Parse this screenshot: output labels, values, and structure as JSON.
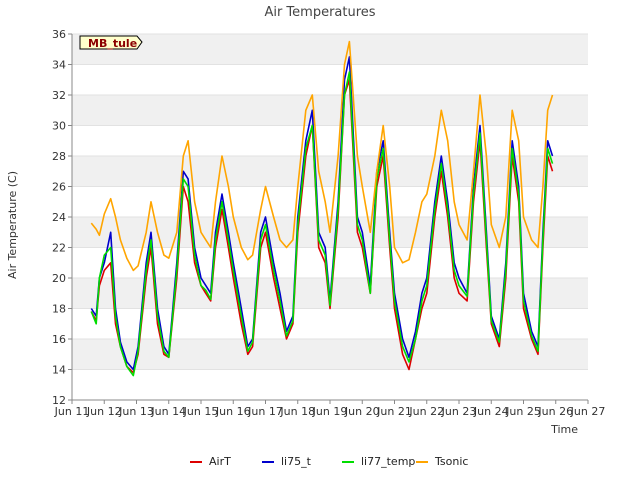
{
  "chart_data": {
    "type": "line",
    "title": "Air Temperatures",
    "xlabel": "Time",
    "ylabel": "Air Temperature (C)",
    "station_label": "MB_tule",
    "xlim": [
      11,
      27
    ],
    "ylim": [
      12,
      36
    ],
    "x_ticks": [
      11,
      12,
      13,
      14,
      15,
      16,
      17,
      18,
      19,
      20,
      21,
      22,
      23,
      24,
      25,
      26,
      27
    ],
    "x_tick_labels": [
      "Jun 11",
      "Jun 12",
      "Jun 13",
      "Jun 14",
      "Jun 15",
      "Jun 16",
      "Jun 17",
      "Jun 18",
      "Jun 19",
      "Jun 20",
      "Jun 21",
      "Jun 22",
      "Jun 23",
      "Jun 24",
      "Jun 25",
      "Jun 26",
      "Jun 27"
    ],
    "y_ticks": [
      12,
      14,
      16,
      18,
      20,
      22,
      24,
      26,
      28,
      30,
      32,
      34,
      36
    ],
    "grid": "horizontal bands",
    "legend_position": "bottom",
    "series": [
      {
        "name": "AirT",
        "color": "#dd0000",
        "x": [
          11.6,
          11.75,
          11.85,
          12.0,
          12.2,
          12.35,
          12.5,
          12.7,
          12.9,
          13.05,
          13.3,
          13.45,
          13.65,
          13.85,
          14.0,
          14.25,
          14.45,
          14.6,
          14.8,
          15.0,
          15.15,
          15.3,
          15.45,
          15.65,
          15.85,
          16.0,
          16.25,
          16.45,
          16.6,
          16.85,
          17.0,
          17.25,
          17.45,
          17.65,
          17.85,
          18.0,
          18.25,
          18.45,
          18.65,
          18.85,
          19.0,
          19.25,
          19.45,
          19.6,
          19.85,
          20.0,
          20.25,
          20.45,
          20.65,
          20.85,
          21.0,
          21.25,
          21.45,
          21.65,
          21.85,
          22.0,
          22.25,
          22.45,
          22.65,
          22.85,
          23.0,
          23.25,
          23.45,
          23.65,
          23.85,
          24.0,
          24.25,
          24.45,
          24.65,
          24.85,
          25.0,
          25.25,
          25.45,
          25.6,
          25.75,
          25.9
        ],
        "y": [
          17.8,
          17.2,
          19.5,
          20.5,
          21,
          17,
          15.5,
          14.2,
          13.8,
          15,
          20,
          22,
          17,
          15,
          14.8,
          20,
          26,
          25,
          21,
          19.5,
          19,
          18.5,
          22,
          24.5,
          22,
          20,
          17,
          15,
          15.5,
          22,
          23,
          20,
          18,
          16,
          17,
          23,
          28,
          30,
          22,
          21,
          18,
          24,
          32,
          33,
          23,
          22,
          19,
          26,
          28,
          22,
          18,
          15,
          14,
          16,
          18,
          19,
          24,
          27,
          24,
          20,
          19,
          18.5,
          25,
          29,
          22,
          17,
          15.5,
          20,
          28,
          25,
          18,
          16,
          15,
          22,
          28,
          27
        ]
      },
      {
        "name": "li75_t",
        "color": "#0000cc",
        "x": [
          11.6,
          11.75,
          11.85,
          12.0,
          12.2,
          12.35,
          12.5,
          12.7,
          12.9,
          13.05,
          13.3,
          13.45,
          13.65,
          13.85,
          14.0,
          14.25,
          14.45,
          14.6,
          14.8,
          15.0,
          15.15,
          15.3,
          15.45,
          15.65,
          15.85,
          16.0,
          16.25,
          16.45,
          16.6,
          16.85,
          17.0,
          17.25,
          17.45,
          17.65,
          17.85,
          18.0,
          18.25,
          18.45,
          18.65,
          18.85,
          19.0,
          19.25,
          19.45,
          19.6,
          19.85,
          20.0,
          20.25,
          20.45,
          20.65,
          20.85,
          21.0,
          21.25,
          21.45,
          21.65,
          21.85,
          22.0,
          22.25,
          22.45,
          22.65,
          22.85,
          23.0,
          23.25,
          23.45,
          23.65,
          23.85,
          24.0,
          24.25,
          24.45,
          24.65,
          24.85,
          25.0,
          25.25,
          25.45,
          25.6,
          25.75,
          25.9
        ],
        "y": [
          18,
          17.5,
          20,
          21,
          23,
          18,
          15.8,
          14.5,
          14,
          15.5,
          21,
          23,
          18,
          15.5,
          15,
          21,
          27,
          26.5,
          22,
          20,
          19.5,
          19,
          23,
          25.5,
          23,
          21,
          18,
          15.5,
          16,
          23,
          24,
          21,
          19,
          16.5,
          17.5,
          24,
          29,
          31,
          23,
          22,
          18.5,
          25,
          33,
          34.5,
          24,
          23,
          19.5,
          27,
          29,
          23,
          19,
          16,
          14.8,
          16.5,
          19,
          20,
          25,
          28,
          25,
          21,
          20,
          19,
          26,
          30,
          23,
          17.5,
          16,
          21,
          29,
          26,
          19,
          16.5,
          15.5,
          23,
          29,
          28
        ]
      },
      {
        "name": "li77_temp",
        "color": "#00dd00",
        "x": [
          11.6,
          11.75,
          11.85,
          12.0,
          12.2,
          12.35,
          12.5,
          12.7,
          12.9,
          13.05,
          13.3,
          13.45,
          13.65,
          13.85,
          14.0,
          14.25,
          14.45,
          14.6,
          14.8,
          15.0,
          15.15,
          15.3,
          15.45,
          15.65,
          15.85,
          16.0,
          16.25,
          16.45,
          16.6,
          16.85,
          17.0,
          17.25,
          17.45,
          17.65,
          17.85,
          18.0,
          18.25,
          18.45,
          18.65,
          18.85,
          19.0,
          19.25,
          19.45,
          19.6,
          19.85,
          20.0,
          20.25,
          20.45,
          20.65,
          20.85,
          21.0,
          21.25,
          21.45,
          21.65,
          21.85,
          22.0,
          22.25,
          22.45,
          22.65,
          22.85,
          23.0,
          23.25,
          23.45,
          23.65,
          23.85,
          24.0,
          24.25,
          24.45,
          24.65,
          24.85,
          25.0,
          25.25,
          25.45,
          25.6,
          25.75,
          25.9
        ],
        "y": [
          17.8,
          17,
          20,
          21.5,
          22,
          17.5,
          15.5,
          14.2,
          13.6,
          15.2,
          20.5,
          22.5,
          17.5,
          15.2,
          14.8,
          20.5,
          26.5,
          26,
          21.5,
          19.5,
          19.2,
          18.6,
          22.5,
          25,
          22.5,
          20.5,
          17.5,
          15.2,
          15.8,
          22.5,
          23.5,
          20.5,
          18.5,
          16.2,
          17.2,
          23.5,
          28.5,
          30,
          22.5,
          21.5,
          18.2,
          24.5,
          32,
          33.5,
          23.5,
          22.5,
          19,
          26.5,
          28.5,
          22.5,
          18.5,
          15.5,
          14.5,
          16,
          18.5,
          19.5,
          24.5,
          27.5,
          24.5,
          20.5,
          19.5,
          18.8,
          25.5,
          29.5,
          22.5,
          17.2,
          15.8,
          20.5,
          28.5,
          25.5,
          18.5,
          16.2,
          15.2,
          22.5,
          28.5,
          27.5
        ]
      },
      {
        "name": "Tsonic",
        "color": "#ffa500",
        "x": [
          11.6,
          11.75,
          11.85,
          12.0,
          12.2,
          12.35,
          12.5,
          12.7,
          12.9,
          13.05,
          13.3,
          13.45,
          13.65,
          13.85,
          14.0,
          14.25,
          14.45,
          14.6,
          14.8,
          15.0,
          15.15,
          15.3,
          15.45,
          15.65,
          15.85,
          16.0,
          16.25,
          16.45,
          16.6,
          16.85,
          17.0,
          17.25,
          17.45,
          17.65,
          17.85,
          18.0,
          18.25,
          18.45,
          18.65,
          18.85,
          19.0,
          19.25,
          19.45,
          19.6,
          19.85,
          20.0,
          20.25,
          20.45,
          20.65,
          20.85,
          21.0,
          21.25,
          21.45,
          21.65,
          21.85,
          22.0,
          22.25,
          22.45,
          22.65,
          22.85,
          23.0,
          23.25,
          23.45,
          23.65,
          23.85,
          24.0,
          24.25,
          24.45,
          24.65,
          24.85,
          25.0,
          25.25,
          25.45,
          25.6,
          25.75,
          25.9
        ],
        "y": [
          23.6,
          23.2,
          22.8,
          24.2,
          25.2,
          24,
          22.5,
          21.3,
          20.5,
          20.8,
          23,
          25,
          23,
          21.5,
          21.3,
          23,
          28,
          29,
          25,
          23,
          22.5,
          22,
          25,
          28,
          26,
          24,
          22,
          21.2,
          21.5,
          24.5,
          26,
          24,
          22.5,
          22,
          22.5,
          26,
          31,
          32,
          27,
          25,
          23,
          28,
          34,
          35.5,
          28,
          26,
          23,
          27,
          30,
          26,
          22,
          21,
          21.2,
          23,
          25,
          25.5,
          28,
          31,
          29,
          25,
          23.5,
          22.5,
          27,
          32,
          28,
          23.5,
          22,
          24,
          31,
          29,
          24,
          22.5,
          22,
          26,
          31,
          32
        ]
      }
    ]
  }
}
